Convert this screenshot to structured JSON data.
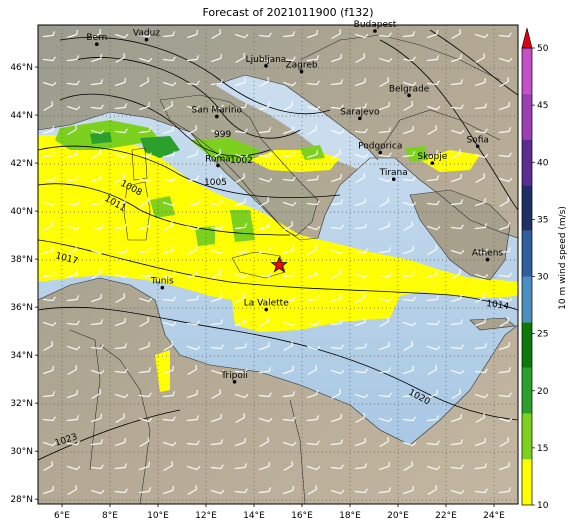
{
  "title": "Forecast of 2021011900 (f132)",
  "lon_ticks": [
    "6°E",
    "8°E",
    "10°E",
    "12°E",
    "14°E",
    "16°E",
    "18°E",
    "20°E",
    "22°E",
    "24°E"
  ],
  "lat_ticks": [
    "28°N",
    "30°N",
    "32°N",
    "34°N",
    "36°N",
    "38°N",
    "40°N",
    "42°N",
    "44°N",
    "46°N"
  ],
  "colorbar": {
    "label": "10 m wind speed (m/s)",
    "ticks": [
      "10",
      "15",
      "20",
      "25",
      "30",
      "35",
      "40",
      "45",
      "50"
    ],
    "colors": [
      "#ffff00",
      "#7cd11e",
      "#2ca02c",
      "#0b7a0b",
      "#4a8fbf",
      "#2f5f9f",
      "#1c2f66",
      "#5b2d90",
      "#9c3fb4",
      "#c54fc9"
    ],
    "extend_color": "#e0000f"
  },
  "cities": [
    {
      "name": "Bern",
      "lon": 7.45,
      "lat": 46.95
    },
    {
      "name": "Vaduz",
      "lon": 9.52,
      "lat": 47.14
    },
    {
      "name": "Budapest",
      "lon": 19.04,
      "lat": 47.5
    },
    {
      "name": "Ljubljana",
      "lon": 14.5,
      "lat": 46.05
    },
    {
      "name": "Zagreb",
      "lon": 15.98,
      "lat": 45.81
    },
    {
      "name": "Belgrade",
      "lon": 20.46,
      "lat": 44.82
    },
    {
      "name": "San Marino",
      "lon": 12.45,
      "lat": 43.94
    },
    {
      "name": "Sarajevo",
      "lon": 18.41,
      "lat": 43.86
    },
    {
      "name": "Sofia",
      "lon": 23.32,
      "lat": 42.7
    },
    {
      "name": "Roma",
      "lon": 12.5,
      "lat": 41.9
    },
    {
      "name": "Podgorica",
      "lon": 19.26,
      "lat": 42.44
    },
    {
      "name": "Skopje",
      "lon": 21.43,
      "lat": 42.0
    },
    {
      "name": "Tirana",
      "lon": 19.82,
      "lat": 41.33
    },
    {
      "name": "Athens",
      "lon": 23.73,
      "lat": 37.98
    },
    {
      "name": "Tunis",
      "lon": 10.18,
      "lat": 36.81
    },
    {
      "name": "La Valette",
      "lon": 14.51,
      "lat": 35.9
    },
    {
      "name": "Tripoli",
      "lon": 13.19,
      "lat": 32.89
    }
  ],
  "isobars": [
    "999",
    "1002",
    "1005",
    "1008",
    "1011",
    "1014",
    "1017",
    "1020",
    "1023"
  ],
  "marker": {
    "symbol": "star",
    "lon": 15.05,
    "lat": 37.75,
    "color": "#ff0000"
  }
}
